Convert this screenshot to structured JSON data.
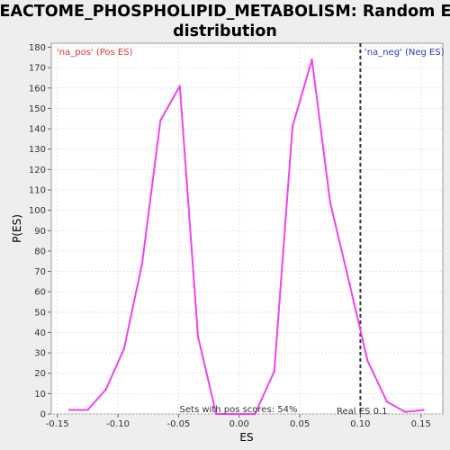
{
  "chart_data": {
    "type": "line",
    "title": "REACTOME_PHOSPHOLIPID_METABOLISM: Random ES distribution",
    "title_lines": [
      "REACTOME_PHOSPHOLIPID_METABOLISM: Random ES",
      "distribution"
    ],
    "xlabel": "ES",
    "ylabel": "P(ES)",
    "xlim": [
      -0.155,
      0.168
    ],
    "ylim": [
      0,
      182
    ],
    "x_ticks": [
      -0.15,
      -0.1,
      -0.05,
      0.0,
      0.05,
      0.1,
      0.15
    ],
    "x_tick_labels": [
      "-0.15",
      "-0.10",
      "-0.05",
      "0.00",
      "0.05",
      "0.10",
      "0.15"
    ],
    "y_ticks": [
      0,
      10,
      20,
      30,
      40,
      50,
      60,
      70,
      80,
      90,
      100,
      110,
      120,
      130,
      140,
      150,
      160,
      170,
      180
    ],
    "y_tick_labels": [
      "0",
      "10",
      "20",
      "30",
      "40",
      "50",
      "60",
      "70",
      "80",
      "90",
      "100",
      "110",
      "120",
      "130",
      "140",
      "150",
      "160",
      "170",
      "180"
    ],
    "grid": true,
    "series": [
      {
        "color": "#ee44ee",
        "x": [
          -0.14,
          -0.125,
          -0.11,
          -0.095,
          -0.08,
          -0.065,
          -0.049,
          -0.034,
          -0.019,
          -0.003,
          0.013,
          0.029,
          0.044,
          0.06,
          0.075,
          0.091,
          0.106,
          0.122,
          0.137,
          0.152
        ],
        "y": [
          2,
          2,
          12,
          32,
          74,
          144,
          161,
          38,
          0,
          0,
          0,
          21,
          141,
          174,
          104,
          64,
          26,
          6,
          1,
          2
        ]
      }
    ],
    "real_es": 0.1,
    "annotations": {
      "pos_label": "'na_pos' (Pos ES)",
      "neg_label": "'na_neg' (Neg ES)",
      "sets_label": "Sets with pos scores: 54%",
      "real_es_label": "Real ES 0.1"
    },
    "colors": {
      "pos": "#dd3333",
      "neg": "#3333cc",
      "line": "#ee44ee",
      "background": "#ffffff",
      "page": "#eeeeee"
    }
  }
}
